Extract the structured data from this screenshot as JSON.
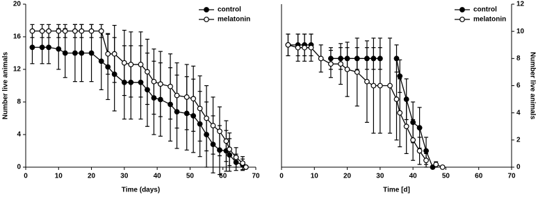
{
  "chart_data": [
    {
      "type": "line",
      "xlabel": "Time (days)",
      "ylabel": "Number live animals",
      "x": [
        2,
        5,
        7,
        10,
        12,
        15,
        17,
        20,
        23,
        25,
        27,
        30,
        32,
        35,
        37,
        39,
        41,
        44,
        46,
        49,
        51,
        53,
        55,
        57,
        59,
        61,
        62,
        64,
        66,
        67
      ],
      "xlim": [
        0,
        70
      ],
      "xticks": [
        0,
        10,
        20,
        30,
        40,
        50,
        60,
        70
      ],
      "ylim": [
        0,
        20
      ],
      "yticks": [
        0,
        4,
        8,
        12,
        16,
        20
      ],
      "legend": "upper right",
      "series": [
        {
          "name": "control",
          "color": "#000000",
          "marker": "filled",
          "values": [
            14.7,
            14.7,
            14.7,
            14.5,
            14,
            14,
            14,
            14,
            13,
            12.3,
            11.4,
            10.4,
            10.4,
            10.4,
            9.5,
            8.5,
            8.3,
            7.7,
            6.8,
            6.6,
            6.3,
            5.3,
            4,
            2.8,
            2.1,
            2,
            1.5,
            0.6,
            0.3,
            0
          ],
          "errors": [
            2,
            2,
            2,
            2.5,
            3,
            3.5,
            3.5,
            3.5,
            3.5,
            4,
            4.5,
            4.5,
            4.5,
            4.5,
            4.5,
            4.5,
            4.5,
            4.5,
            4.5,
            4.5,
            4.5,
            4,
            4,
            3.5,
            3,
            2.5,
            2,
            1,
            0.7,
            0
          ]
        },
        {
          "name": "melatonin",
          "color": "#000000",
          "marker": "open",
          "values": [
            16.7,
            16.7,
            16.7,
            16.7,
            16.7,
            16.7,
            16.7,
            16.7,
            16.7,
            13.9,
            13.9,
            12.8,
            12.6,
            12.6,
            11.7,
            10.5,
            10.2,
            9.9,
            8.8,
            8.6,
            8.4,
            7.2,
            6,
            5.1,
            4.4,
            3.2,
            2.2,
            1.2,
            0.5,
            0
          ],
          "errors": [
            0.8,
            0.8,
            0.8,
            0.8,
            0.8,
            0.8,
            0.8,
            0.8,
            0.8,
            2.5,
            3.5,
            4,
            4,
            4,
            4,
            4,
            4,
            4,
            4,
            4,
            4,
            4,
            4,
            3.5,
            3,
            2.5,
            2,
            1.2,
            0.8,
            0
          ]
        }
      ]
    },
    {
      "type": "line",
      "xlabel": "Time [d]",
      "y2label": "Number live animals",
      "x": [
        2,
        5,
        7,
        9,
        12,
        15,
        18,
        20,
        23,
        26,
        28,
        30,
        33,
        35,
        36,
        38,
        40,
        42,
        44,
        46,
        47,
        49
      ],
      "xlim": [
        0,
        70
      ],
      "xticks": [
        0,
        10,
        20,
        30,
        40,
        50,
        60,
        70
      ],
      "y2lim": [
        0,
        12
      ],
      "y2ticks": [
        0,
        2,
        4,
        6,
        8,
        10,
        12
      ],
      "legend": "upper right",
      "series": [
        {
          "name": "control",
          "color": "#000000",
          "marker": "filled",
          "axis": "y2",
          "values": [
            9,
            9,
            9,
            9,
            null,
            8,
            8,
            8,
            8,
            8,
            8,
            8,
            null,
            8,
            6.7,
            5,
            3.3,
            2.9,
            1.2,
            0,
            null,
            null
          ],
          "errors": [
            0.8,
            0.8,
            0.8,
            0.8,
            null,
            0.8,
            0.8,
            0.8,
            0.8,
            0.8,
            0.8,
            0.8,
            null,
            1,
            1.2,
            1.5,
            1.5,
            1.5,
            1,
            0,
            null,
            null
          ]
        },
        {
          "name": "melatonin",
          "color": "#000000",
          "marker": "open",
          "axis": "y2",
          "values": [
            9,
            8.8,
            8.8,
            8.8,
            8,
            7.6,
            7.6,
            7.2,
            7,
            6.3,
            6,
            6,
            6,
            5,
            4,
            3,
            2,
            1.2,
            0.5,
            null,
            0.2,
            0
          ],
          "errors": [
            0.8,
            1,
            1,
            1,
            1,
            1,
            1.5,
            2,
            2.5,
            3,
            3.5,
            3.5,
            3.5,
            3,
            2.5,
            2,
            1.5,
            1,
            0.5,
            null,
            0.2,
            0
          ]
        }
      ]
    }
  ]
}
